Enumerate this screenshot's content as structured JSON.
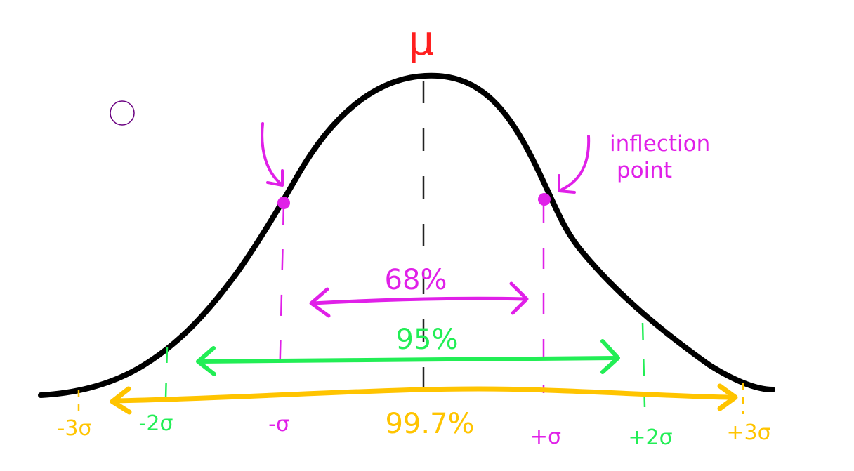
{
  "mean_label": "μ",
  "annotation": {
    "line1": "inflection",
    "line2": "point"
  },
  "percentages": {
    "one_sigma": "68%",
    "two_sigma": "95%",
    "three_sigma": "99.7%"
  },
  "sigma_labels": {
    "minus3": "-3σ",
    "minus2": "-2σ",
    "minus1": "-σ",
    "plus1": "+σ",
    "plus2": "+2σ",
    "plus3": "+3σ"
  },
  "colors": {
    "curve": "#000000",
    "mean": "#ff1f1f",
    "one_sigma": "#e020e8",
    "two_sigma": "#22ee55",
    "three_sigma": "#ffc400",
    "cursor": "#6a0080"
  },
  "icons": [
    "cursor-circle-icon",
    "arrow-icon",
    "inflection-dot-icon"
  ]
}
